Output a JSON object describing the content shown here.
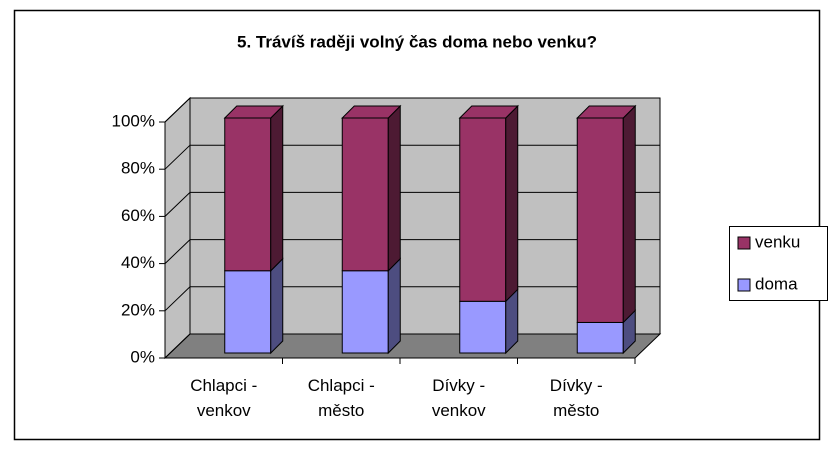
{
  "chart_data": {
    "type": "bar",
    "stacked": true,
    "percent": true,
    "three_d": true,
    "title": "5. Trávíš raději volný čas doma nebo venku?",
    "categories": [
      "Chlapci - venkov",
      "Chlapci - město",
      "Dívky - venkov",
      "Dívky - město"
    ],
    "series": [
      {
        "name": "doma",
        "color": "#9999ff",
        "values": [
          35,
          35,
          22,
          13
        ]
      },
      {
        "name": "venku",
        "color": "#993366",
        "values": [
          65,
          65,
          78,
          87
        ]
      }
    ],
    "ylim": [
      0,
      100
    ],
    "yticks": [
      {
        "value": 0,
        "label": "0%"
      },
      {
        "value": 20,
        "label": "20%"
      },
      {
        "value": 40,
        "label": "40%"
      },
      {
        "value": 60,
        "label": "60%"
      },
      {
        "value": 80,
        "label": "80%"
      },
      {
        "value": 100,
        "label": "100%"
      }
    ],
    "grid": true,
    "legend": "right"
  }
}
